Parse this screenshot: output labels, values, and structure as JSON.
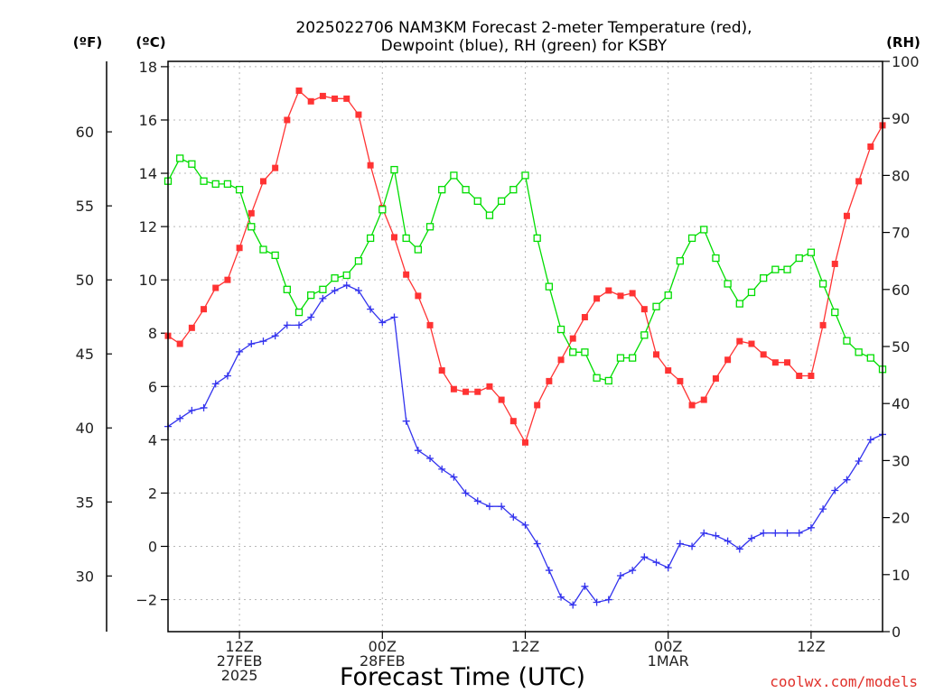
{
  "chart_data": {
    "type": "line",
    "title_lines": [
      "2025022706 NAM3KM Forecast 2-meter Temperature (red),",
      "Dewpoint (blue), RH (green) for KSBY"
    ],
    "xlabel": "Forecast Time (UTC)",
    "credit": "coolwx.com/models",
    "units": {
      "left_outer": "(ºF)",
      "left_inner": "(ºC)",
      "right": "(RH)"
    },
    "x_range_hours": [
      6,
      66
    ],
    "x_ticks": [
      {
        "hour": 12,
        "lines": [
          "12Z",
          "27FEB",
          "2025"
        ]
      },
      {
        "hour": 24,
        "lines": [
          "00Z",
          "28FEB"
        ]
      },
      {
        "hour": 36,
        "lines": [
          "12Z"
        ]
      },
      {
        "hour": 48,
        "lines": [
          "00Z",
          "1MAR"
        ]
      },
      {
        "hour": 60,
        "lines": [
          "12Z"
        ]
      }
    ],
    "y_celsius": {
      "range": [
        -3.2,
        18.2
      ],
      "ticks": [
        18,
        16,
        14,
        12,
        10,
        8,
        6,
        4,
        2,
        0,
        -2
      ],
      "labels": [
        "18",
        "16",
        "14",
        "12",
        "10",
        "8",
        "6",
        "4",
        "2",
        "0",
        "−2"
      ]
    },
    "y_fahrenheit": {
      "ticks": [
        60,
        55,
        50,
        45,
        40,
        35,
        30
      ]
    },
    "y_rh": {
      "range": [
        0,
        100
      ],
      "ticks": [
        100,
        90,
        80,
        70,
        60,
        50,
        40,
        30,
        20,
        10,
        0
      ]
    },
    "series": [
      {
        "color": "#ff3333",
        "marker": "filled-square",
        "axis": "celsius",
        "start_hour": 6,
        "step_hours": 1,
        "values": [
          7.9,
          7.6,
          8.2,
          8.9,
          9.7,
          10.0,
          11.2,
          12.5,
          13.7,
          14.2,
          16.0,
          17.1,
          16.7,
          16.9,
          16.8,
          16.8,
          16.2,
          14.3,
          12.7,
          11.6,
          10.2,
          9.4,
          8.3,
          6.6,
          5.9,
          5.8,
          5.8,
          6.0,
          5.5,
          4.7,
          3.9,
          5.3,
          6.2,
          7.0,
          7.8,
          8.6,
          9.3,
          9.6,
          9.4,
          9.5,
          8.9,
          7.2,
          6.6,
          6.2,
          5.3,
          5.5,
          6.3,
          7.0,
          7.7,
          7.6,
          7.2,
          6.9,
          6.9,
          6.4,
          6.4,
          8.3,
          10.6,
          12.4,
          13.7,
          15.0,
          15.8
        ]
      },
      {
        "color": "#3333ee",
        "marker": "plus",
        "axis": "celsius",
        "start_hour": 6,
        "step_hours": 1,
        "values": [
          4.5,
          4.8,
          5.1,
          5.2,
          6.1,
          6.4,
          7.3,
          7.6,
          7.7,
          7.9,
          8.3,
          8.3,
          8.6,
          9.3,
          9.6,
          9.8,
          9.6,
          8.9,
          8.4,
          8.6,
          4.7,
          3.6,
          3.3,
          2.9,
          2.6,
          2.0,
          1.7,
          1.5,
          1.5,
          1.1,
          0.8,
          0.1,
          -0.9,
          -1.9,
          -2.2,
          -1.5,
          -2.1,
          -2.0,
          -1.1,
          -0.9,
          -0.4,
          -0.6,
          -0.8,
          0.1,
          0.0,
          0.5,
          0.4,
          0.2,
          -0.1,
          0.3,
          0.5,
          0.5,
          0.5,
          0.5,
          0.7,
          1.4,
          2.1,
          2.5,
          3.2,
          4.0,
          4.2
        ]
      },
      {
        "color": "#00dd00",
        "marker": "open-square",
        "axis": "rh",
        "start_hour": 6,
        "step_hours": 1,
        "values": [
          79,
          83,
          82,
          79,
          78.5,
          78.5,
          77.5,
          71,
          67,
          66,
          60,
          56,
          59,
          60,
          62,
          62.5,
          65,
          69,
          74,
          81,
          69,
          67,
          71,
          77.5,
          80,
          77.5,
          75.5,
          73,
          75.5,
          77.5,
          80,
          69,
          60.5,
          53,
          49,
          49,
          44.5,
          44,
          48,
          48,
          52,
          57,
          59,
          65,
          69,
          70.5,
          65.5,
          61,
          57.5,
          59.5,
          62,
          63.5,
          63.5,
          65.5,
          66.5,
          61,
          56,
          51,
          49,
          48,
          46
        ]
      }
    ]
  }
}
